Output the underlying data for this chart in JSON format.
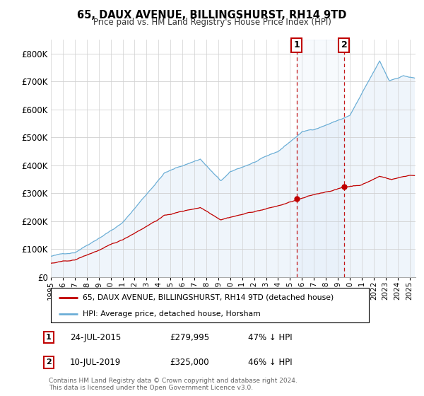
{
  "title": "65, DAUX AVENUE, BILLINGSHURST, RH14 9TD",
  "subtitle": "Price paid vs. HM Land Registry's House Price Index (HPI)",
  "ylim": [
    0,
    850000
  ],
  "yticks": [
    0,
    100000,
    200000,
    300000,
    400000,
    500000,
    600000,
    700000,
    800000
  ],
  "ytick_labels": [
    "£0",
    "£100K",
    "£200K",
    "£300K",
    "£400K",
    "£500K",
    "£600K",
    "£700K",
    "£800K"
  ],
  "hpi_color": "#6baed6",
  "price_color": "#c00000",
  "sale1": {
    "date": "24-JUL-2015",
    "price": 279995,
    "year": 2015.55,
    "pct": "47% ↓ HPI"
  },
  "sale2": {
    "date": "10-JUL-2019",
    "price": 325000,
    "year": 2019.53,
    "pct": "46% ↓ HPI"
  },
  "legend_label1": "65, DAUX AVENUE, BILLINGSHURST, RH14 9TD (detached house)",
  "legend_label2": "HPI: Average price, detached house, Horsham",
  "footer": "Contains HM Land Registry data © Crown copyright and database right 2024.\nThis data is licensed under the Open Government Licence v3.0.",
  "background_color": "#ffffff",
  "grid_color": "#d0d0d0",
  "hpi_shade_color": "#cce0f5",
  "xlim_start": 1995,
  "xlim_end": 2025.5
}
